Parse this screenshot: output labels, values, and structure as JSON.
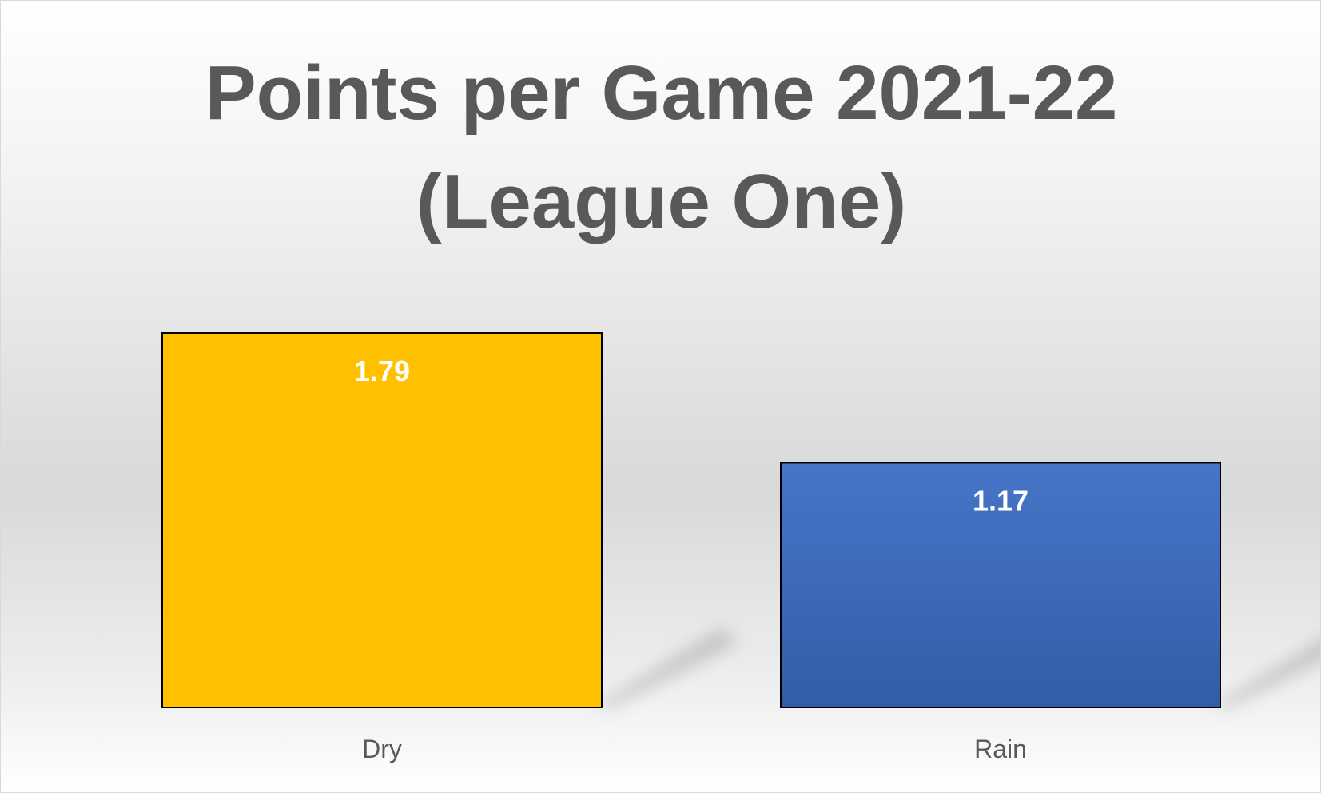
{
  "chart_data": {
    "type": "bar",
    "title_lines": [
      "Points per Game 2021-22",
      "(League One)"
    ],
    "title": "Points per Game 2021-22 (League One)",
    "xlabel": "",
    "ylabel": "",
    "categories": [
      "Dry",
      "Rain"
    ],
    "values": [
      1.79,
      1.17
    ],
    "data_labels": [
      "1.79",
      "1.17"
    ],
    "colors": [
      "#ffc000",
      "#4472c4"
    ],
    "ylim": [
      0,
      1.79
    ],
    "grid": false,
    "legend": "none"
  }
}
